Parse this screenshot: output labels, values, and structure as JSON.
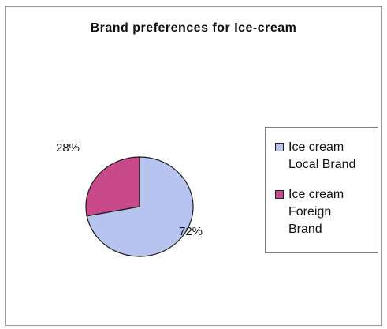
{
  "chart_data": {
    "type": "pie",
    "title": "Brand preferences for Ice-cream",
    "slices": [
      {
        "label": "Ice cream Local Brand",
        "value": 72,
        "display": "72%",
        "color": "#b8c4f0"
      },
      {
        "label": "Ice cream Foreign Brand",
        "value": 28,
        "display": "28%",
        "color": "#c94a8a"
      }
    ],
    "legend": {
      "position": "right",
      "items": [
        "Ice cream Local Brand",
        "Ice cream Foreign Brand"
      ]
    }
  }
}
